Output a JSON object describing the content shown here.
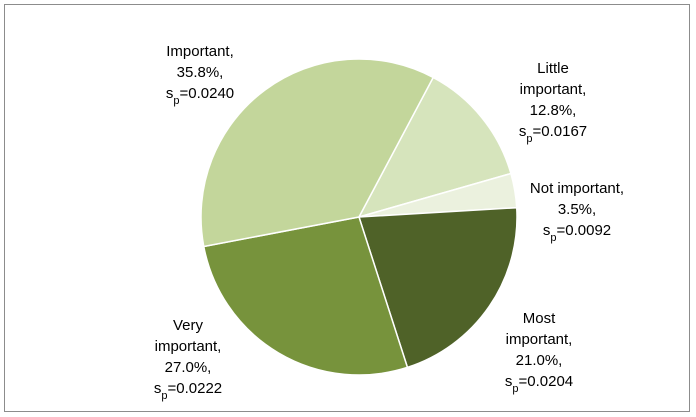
{
  "chart_data": {
    "type": "pie",
    "start_angle_deg": 62,
    "direction": "clockwise",
    "slices": [
      {
        "category": "Little important",
        "value": 12.8,
        "percent_label": "12.8%",
        "sp_label": "=0.0167",
        "color": "#d6e4bc",
        "label_lines": [
          "Little",
          "important,",
          "12.8%,"
        ]
      },
      {
        "category": "Not important",
        "value": 3.5,
        "percent_label": "3.5%",
        "sp_label": "=0.0092",
        "color": "#ebf1de",
        "label_lines": [
          "Not important,",
          "3.5%,"
        ]
      },
      {
        "category": "Most important",
        "value": 21.0,
        "percent_label": "21.0%",
        "sp_label": "=0.0204",
        "color": "#4f6228",
        "label_lines": [
          "Most",
          "important,",
          "21.0%,"
        ]
      },
      {
        "category": "Very important",
        "value": 27.0,
        "percent_label": "27.0%",
        "sp_label": "=0.0222",
        "color": "#77933c",
        "label_lines": [
          "Very",
          "important,",
          "27.0%,"
        ]
      },
      {
        "category": "Important",
        "value": 35.8,
        "percent_label": "35.8%",
        "sp_label": "=0.0240",
        "color": "#c3d69b",
        "label_lines": [
          "Important,",
          "35.8%,"
        ]
      }
    ],
    "sp_prefix": "s",
    "sp_sub": "p"
  }
}
